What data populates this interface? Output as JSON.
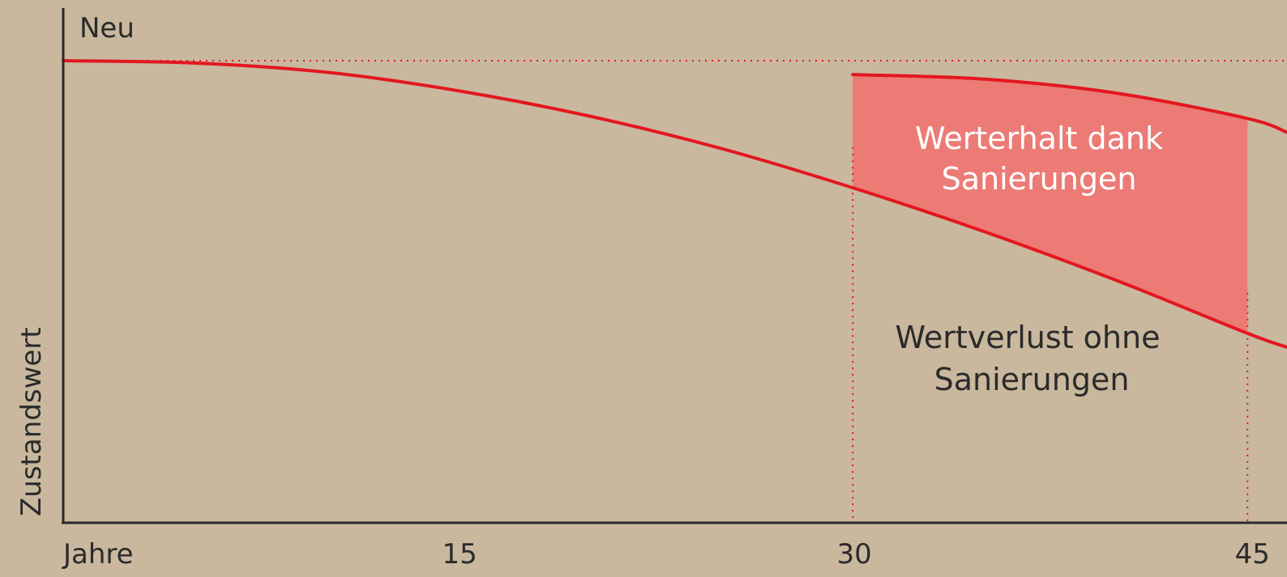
{
  "chart_data": {
    "type": "area",
    "xlabel": "Jahre",
    "ylabel": "Zustandswert",
    "y_top_label": "Neu",
    "xlim": [
      0,
      46.5
    ],
    "ylim": [
      0,
      100
    ],
    "x_ticks": [
      15,
      30,
      45
    ],
    "reference_line": {
      "y": 100,
      "style": "dotted"
    },
    "vertical_markers": [
      30,
      45
    ],
    "series": [
      {
        "x": [
          0,
          5,
          10,
          15,
          20,
          25,
          30,
          35,
          40,
          45,
          46.5
        ],
        "values": [
          100,
          99.5,
          97.5,
          93.5,
          88,
          81,
          72.5,
          63,
          52.5,
          41,
          38
        ]
      },
      {
        "x": [
          30,
          35,
          40,
          45,
          46.5
        ],
        "values": [
          97,
          96,
          93,
          87.5,
          84.5
        ]
      }
    ],
    "annotations": [
      {
        "text_lines": [
          "Werterhalt dank",
          "Sanierungen"
        ]
      },
      {
        "text_lines": [
          "Wertverlust ohne",
          "Sanierungen"
        ]
      }
    ],
    "colors": {
      "background": "#c9b89e",
      "curve": "#e3171f",
      "fill": "#ec7b76",
      "axis": "#2a2a2a"
    }
  }
}
